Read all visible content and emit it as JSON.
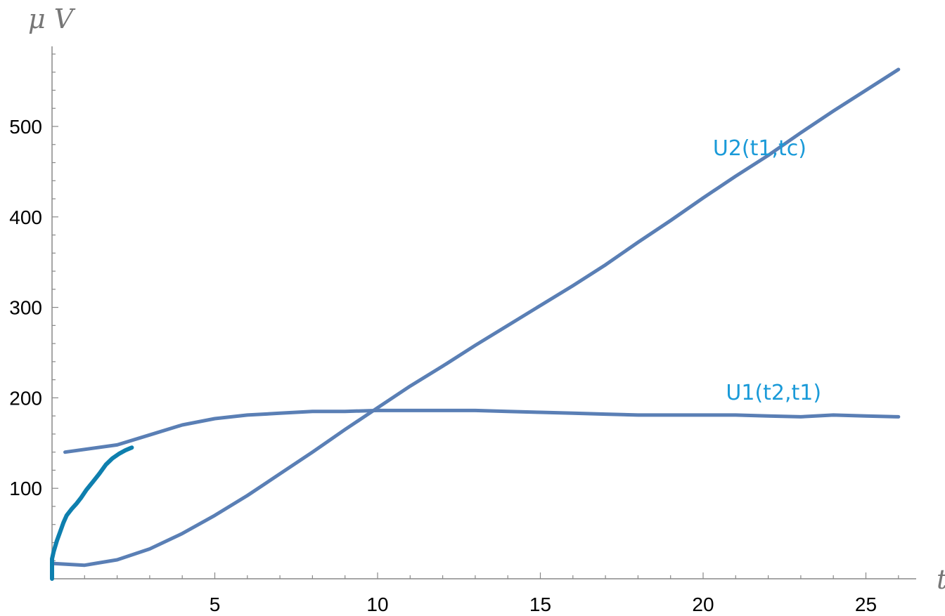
{
  "chart_data": {
    "type": "line",
    "title": "",
    "xlabel": "t",
    "ylabel": "μ V",
    "xlim": [
      0,
      26.5
    ],
    "ylim": [
      0,
      585
    ],
    "xticks": [
      5,
      10,
      15,
      20,
      25
    ],
    "yticks": [
      100,
      200,
      300,
      400,
      500
    ],
    "grid": false,
    "colors": {
      "line": "#5a7fb5",
      "label": "#1a9ad8",
      "early": "#0e7fae",
      "axis": "#888888"
    },
    "series": [
      {
        "name": "U2(t1,tc)",
        "x": [
          0,
          1,
          2,
          3,
          4,
          5,
          6,
          7,
          8,
          9,
          10,
          11,
          12,
          13,
          14,
          15,
          16,
          17,
          18,
          19,
          20,
          21,
          22,
          23,
          24,
          25,
          26
        ],
        "y": [
          17,
          15,
          21,
          33,
          50,
          70,
          92,
          116,
          140,
          165,
          189,
          213,
          235,
          258,
          280,
          302,
          324,
          347,
          372,
          396,
          421,
          445,
          468,
          493,
          517,
          540,
          563
        ]
      },
      {
        "name": "U1(t2,t1)",
        "x": [
          0.4,
          2,
          3,
          4,
          5,
          6,
          7,
          8,
          9,
          10,
          11,
          12,
          13,
          14,
          15,
          16,
          17,
          18,
          19,
          20,
          21,
          22,
          23,
          24,
          25,
          26
        ],
        "y": [
          140,
          148,
          159,
          170,
          177,
          181,
          183,
          185,
          185,
          186,
          186,
          186,
          186,
          185,
          184,
          183,
          182,
          181,
          181,
          181,
          181,
          180,
          179,
          181,
          180,
          179
        ]
      },
      {
        "name": "",
        "x": [
          0,
          0,
          0.05,
          0.15,
          0.25,
          0.35,
          0.45,
          0.6,
          0.75,
          0.9,
          1.05,
          1.25,
          1.45,
          1.65,
          1.85,
          2.05,
          2.25,
          2.45
        ],
        "y": [
          0,
          22,
          30,
          42,
          52,
          62,
          70,
          77,
          83,
          90,
          98,
          107,
          116,
          126,
          133,
          138,
          142,
          145
        ]
      }
    ],
    "labels": [
      {
        "series": "U2(t1,tc)",
        "text": "U2(t1,tc)",
        "x": 20.3,
        "y": 468
      },
      {
        "series": "U1(t2,t1)",
        "text": "U1(t2,t1)",
        "x": 20.7,
        "y": 198
      }
    ]
  }
}
